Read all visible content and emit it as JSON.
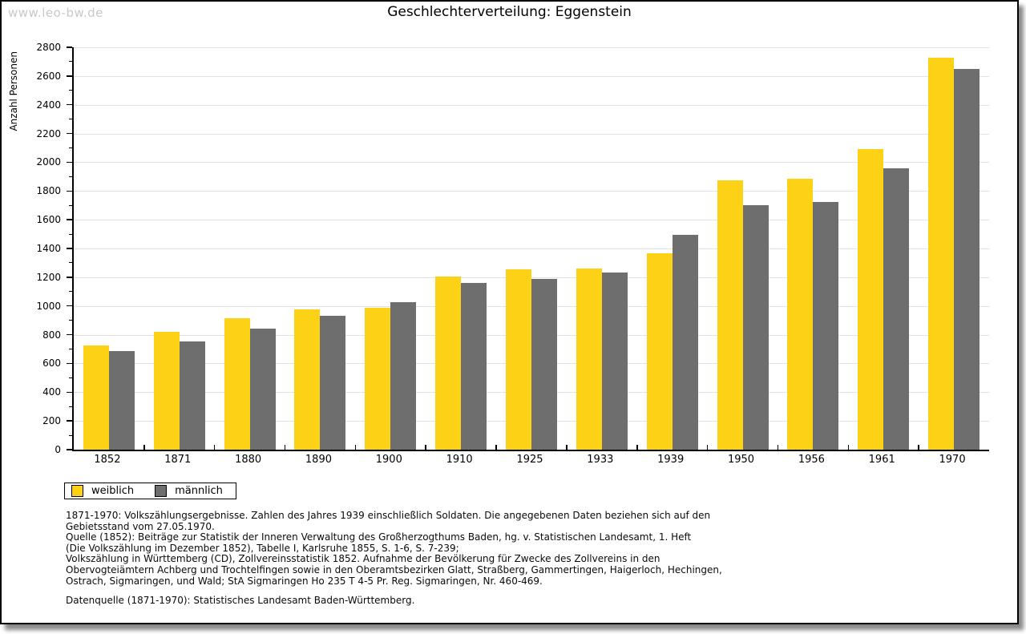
{
  "watermark": "www.leo-bw.de",
  "title": "Geschlechterverteilung: Eggenstein",
  "chart_data": {
    "type": "bar",
    "title": "Geschlechterverteilung: Eggenstein",
    "xlabel": "",
    "ylabel": "Anzahl Personen",
    "ylim": [
      0,
      2800
    ],
    "ytick_step": 200,
    "ytick_minor_step": 100,
    "grid": true,
    "legend_position": "bottom-left",
    "categories": [
      "1852",
      "1871",
      "1880",
      "1890",
      "1900",
      "1910",
      "1925",
      "1933",
      "1939",
      "1950",
      "1956",
      "1961",
      "1970"
    ],
    "series": [
      {
        "name": "weiblich",
        "color": "#FCD116",
        "values": [
          725,
          820,
          915,
          975,
          985,
          1205,
          1255,
          1260,
          1365,
          1875,
          1885,
          2090,
          2730
        ]
      },
      {
        "name": "männlich",
        "color": "#6E6E6E",
        "values": [
          685,
          755,
          840,
          930,
          1025,
          1160,
          1190,
          1235,
          1495,
          1700,
          1725,
          1960,
          2650
        ]
      }
    ]
  },
  "footnotes": {
    "lines": [
      "1871-1970: Volkszählungsergebnisse. Zahlen des Jahres 1939 einschließlich Soldaten. Die angegebenen Daten beziehen sich auf den",
      "Gebietsstand vom 27.05.1970.",
      "Quelle (1852): Beiträge zur Statistik der Inneren Verwaltung des Großherzogthums Baden, hg. v. Statistischen Landesamt, 1. Heft",
      "(Die Volkszählung im Dezember 1852), Tabelle I, Karlsruhe 1855, S. 1-6, S. 7-239;",
      "Volkszählung in Württemberg (CD), Zollvereinsstatistik 1852. Aufnahme der Bevölkerung für Zwecke des Zollvereins in den",
      "Obervogteiämtern Achberg und Trochtelfingen sowie in den Oberamtsbezirken Glatt, Straßberg, Gammertingen, Haigerloch, Hechingen,",
      "Ostrach, Sigmaringen, und Wald; StA Sigmaringen Ho 235 T 4-5 Pr. Reg. Sigmaringen, Nr. 460-469."
    ]
  },
  "datasource": "Datenquelle (1871-1970): Statistisches Landesamt Baden-Württemberg."
}
